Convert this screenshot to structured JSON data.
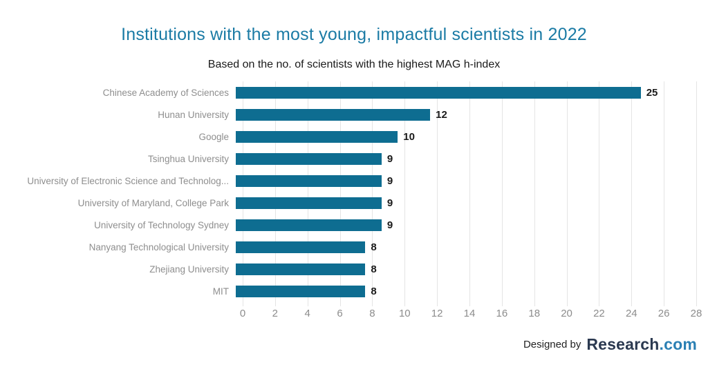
{
  "chart_data": {
    "type": "bar",
    "orientation": "horizontal",
    "title": "Institutions with the most young, impactful scientists in 2022",
    "subtitle": "Based on the no. of scientists with the highest MAG h-index",
    "categories": [
      "Chinese Academy of Sciences",
      "Hunan University",
      "Google",
      "Tsinghua University",
      "University of Electronic Science and Technolog...",
      "University of Maryland, College Park",
      "University of Technology Sydney",
      "Nanyang Technological University",
      "Zhejiang University",
      "MIT"
    ],
    "values": [
      25,
      12,
      10,
      9,
      9,
      9,
      9,
      8,
      8,
      8
    ],
    "xlim": [
      0,
      28
    ],
    "xticks": [
      0,
      2,
      4,
      6,
      8,
      10,
      12,
      14,
      16,
      18,
      20,
      22,
      24,
      26,
      28
    ],
    "grid": "vertical",
    "legend": "none",
    "value_labels": true
  },
  "colors": {
    "bar": "#0e6d91",
    "title": "#1b7ba5",
    "category_labels": "#8e8e8e",
    "value_labels": "#1a1a1a",
    "tick_labels": "#8c8c8c",
    "gridline": "#e4e4e4",
    "logo_navy": "#2b3950",
    "logo_blue": "#2b80b4"
  },
  "footer": {
    "designed_by": "Designed by",
    "logo_research": "Research",
    "logo_com": ".com"
  }
}
